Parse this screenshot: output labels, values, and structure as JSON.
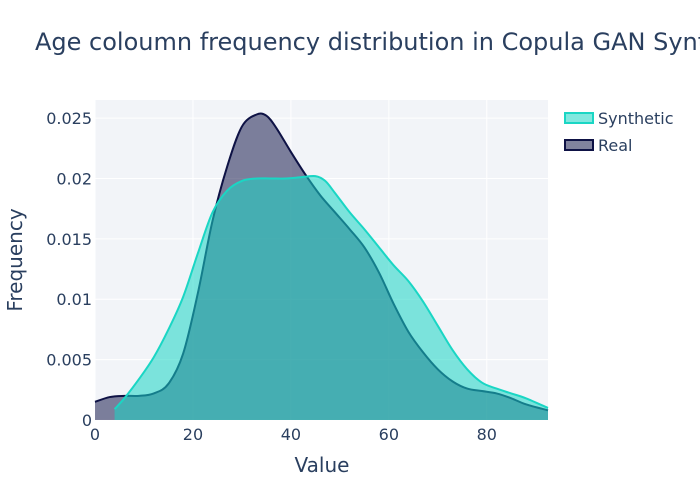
{
  "chart_data": {
    "type": "area",
    "title": "Age coloumn frequency distribution in Copula GAN Synthetic Data",
    "xlabel": "Value",
    "ylabel": "Frequency",
    "xlim": [
      0,
      92.5
    ],
    "ylim": [
      0,
      0.0265
    ],
    "x_ticks": [
      0,
      20,
      40,
      60,
      80
    ],
    "x_tick_labels": [
      "0",
      "20",
      "40",
      "60",
      "80"
    ],
    "y_ticks": [
      0,
      0.005,
      0.01,
      0.015,
      0.02,
      0.025
    ],
    "y_tick_labels": [
      "0",
      "0.005",
      "0.01",
      "0.015",
      "0.02",
      "0.025"
    ],
    "grid": true,
    "legend_position": "top-right",
    "colors": {
      "plot_bg": "#f2f4f8",
      "grid": "#ffffff",
      "text": "#2a3f5f",
      "synthetic_line": "#1ad6c4",
      "synthetic_fill": "rgba(26,214,196,0.55)",
      "real_line": "#0e1245",
      "real_fill": "rgba(14,18,69,0.52)"
    },
    "series": [
      {
        "name": "Real",
        "x": [
          0,
          3,
          6,
          9,
          12,
          15,
          18,
          21,
          24,
          27,
          30,
          33,
          35,
          37,
          40,
          43,
          46,
          49,
          52,
          55,
          58,
          61,
          64,
          67,
          70,
          73,
          76,
          79,
          82,
          85,
          88,
          92.5
        ],
        "y": [
          0.0015,
          0.0019,
          0.002,
          0.002,
          0.0022,
          0.003,
          0.0055,
          0.0105,
          0.0165,
          0.021,
          0.0243,
          0.0253,
          0.0252,
          0.0242,
          0.0222,
          0.0203,
          0.0186,
          0.0172,
          0.0158,
          0.0143,
          0.0122,
          0.0096,
          0.0073,
          0.0056,
          0.0042,
          0.0032,
          0.0026,
          0.0024,
          0.0022,
          0.0018,
          0.0013,
          0.0008
        ]
      },
      {
        "name": "Synthetic",
        "x": [
          4,
          6,
          9,
          12,
          15,
          18,
          21,
          24,
          27,
          30,
          33,
          36,
          39,
          42,
          45,
          47,
          49,
          52,
          55,
          58,
          61,
          64,
          67,
          70,
          73,
          76,
          79,
          82,
          85,
          88,
          92.5
        ],
        "y": [
          0.0009,
          0.0018,
          0.0034,
          0.0052,
          0.0075,
          0.0102,
          0.0138,
          0.0172,
          0.019,
          0.0198,
          0.02,
          0.02,
          0.02,
          0.0201,
          0.0202,
          0.0198,
          0.0188,
          0.0172,
          0.0158,
          0.0143,
          0.0128,
          0.0115,
          0.0098,
          0.0078,
          0.0058,
          0.0042,
          0.0031,
          0.0026,
          0.0022,
          0.0018,
          0.001
        ]
      }
    ]
  }
}
